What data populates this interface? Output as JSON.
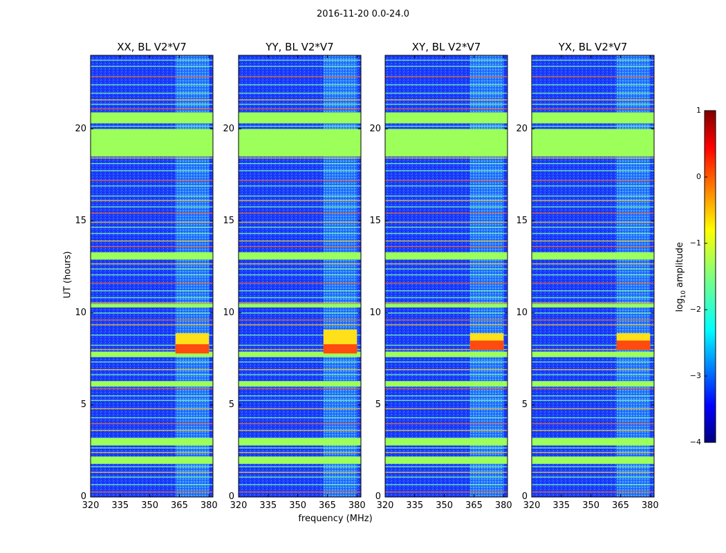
{
  "chart_data": {
    "type": "heatmap",
    "suptitle": "2016-11-20 0.0-24.0",
    "xlabel": "frequency (MHz)",
    "ylabel": "UT (hours)",
    "xlim": [
      320,
      382
    ],
    "ylim": [
      0,
      24
    ],
    "x_ticks": [
      320,
      335,
      350,
      365,
      380
    ],
    "y_ticks": [
      0,
      5,
      10,
      15,
      20
    ],
    "panels": [
      {
        "title": "XX, BL V2*V7",
        "strong_signal_hours": [
          7.8,
          8.9
        ]
      },
      {
        "title": "YY, BL V2*V7",
        "strong_signal_hours": [
          7.8,
          9.1
        ]
      },
      {
        "title": "XY, BL V2*V7",
        "strong_signal_hours": [
          8.0,
          8.9
        ]
      },
      {
        "title": "YX, BL V2*V7",
        "strong_signal_hours": [
          8.0,
          8.9
        ]
      }
    ],
    "rfi_band_mhz": [
      363,
      380
    ],
    "flagged_hour_ranges": [
      [
        18.5,
        20.0
      ],
      [
        20.3,
        20.9
      ],
      [
        12.9,
        13.3
      ],
      [
        10.3,
        10.5
      ],
      [
        7.6,
        7.9
      ],
      [
        6.0,
        6.3
      ],
      [
        2.8,
        3.2
      ],
      [
        1.8,
        2.2
      ]
    ],
    "colorbar": {
      "label": "log",
      "label_sub": "10",
      "label_rest": " amplitude",
      "ticks": [
        1,
        0,
        -1,
        -2,
        -3,
        -4
      ],
      "tick_labels": [
        "1",
        "0",
        "−1",
        "−2",
        "−3",
        "−4"
      ],
      "range": [
        -4,
        1
      ],
      "colormap": "jet"
    }
  }
}
